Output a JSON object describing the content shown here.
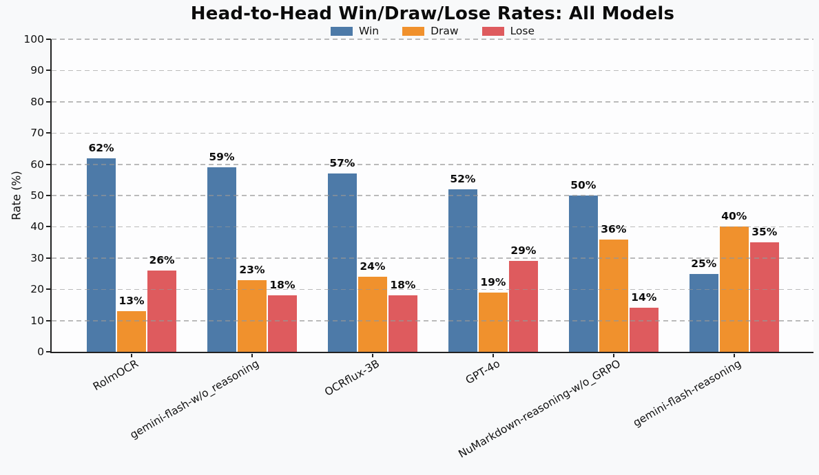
{
  "chart_data": {
    "type": "bar",
    "title": "Head-to-Head Win/Draw/Lose Rates: All Models",
    "xlabel": "",
    "ylabel": "Rate (%)",
    "ylim": [
      0,
      100
    ],
    "yticks": [
      0,
      10,
      20,
      30,
      40,
      50,
      60,
      70,
      80,
      90,
      100
    ],
    "grid": "horizontal dashed gridlines drawn over bars",
    "legend_position": "top center",
    "categories": [
      "RolmOCR",
      "gemini-flash-w/o_reasoning",
      "OCRflux-3B",
      "GPT-4o",
      "NuMarkdown-reasoning-w/o_GRPO",
      "gemini-flash-reasoning"
    ],
    "series": [
      {
        "name": "Win",
        "color": "#4D7AA8",
        "values": [
          62,
          59,
          57,
          52,
          50,
          25
        ],
        "labels": [
          "62%",
          "59%",
          "57%",
          "52%",
          "50%",
          "25%"
        ]
      },
      {
        "name": "Draw",
        "color": "#F0912D",
        "values": [
          13,
          23,
          24,
          19,
          36,
          40
        ],
        "labels": [
          "13%",
          "23%",
          "24%",
          "19%",
          "36%",
          "40%"
        ]
      },
      {
        "name": "Lose",
        "color": "#DE5B5E",
        "values": [
          26,
          18,
          18,
          29,
          14,
          35
        ],
        "labels": [
          "26%",
          "18%",
          "18%",
          "29%",
          "14%",
          "35%"
        ]
      }
    ]
  },
  "colors": {
    "figure_background": "#f8f9fa",
    "plot_background": "#fdfdfe",
    "grid": "#969696",
    "axis": "#222222",
    "text": "#111111"
  }
}
